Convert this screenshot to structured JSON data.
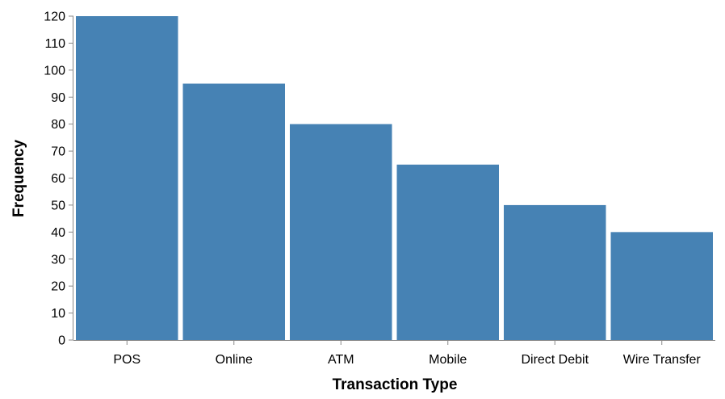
{
  "chart_data": {
    "type": "bar",
    "categories": [
      "POS",
      "Online",
      "ATM",
      "Mobile",
      "Direct Debit",
      "Wire Transfer"
    ],
    "values": [
      120,
      95,
      80,
      65,
      50,
      40
    ],
    "xlabel": "Transaction Type",
    "ylabel": "Frequency",
    "ylim": [
      0,
      120
    ],
    "yticks": [
      0,
      10,
      20,
      30,
      40,
      50,
      60,
      70,
      80,
      90,
      100,
      110,
      120
    ],
    "bar_color": "#4682b4",
    "grid": false,
    "legend": "none"
  }
}
